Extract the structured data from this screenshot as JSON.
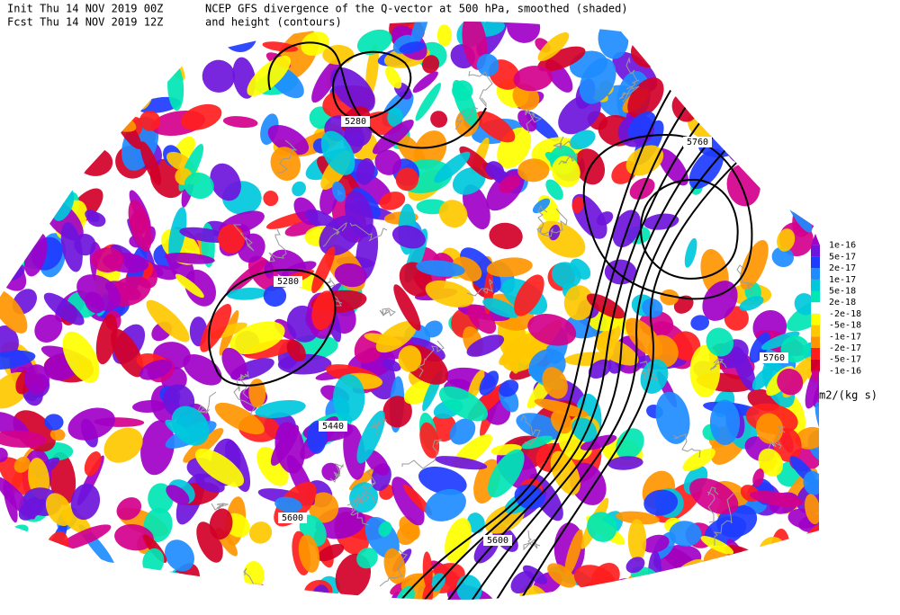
{
  "header": {
    "init": "Init  Thu 14 NOV 2019 00Z",
    "fcst": "Fcst Thu 14 NOV 2019 12Z",
    "title": "NCEP GFS divergence of the Q-vector at 500 hPa, smoothed (shaded)",
    "subtitle": "and height (contours)"
  },
  "contour_labels": [
    5280,
    5280,
    5440,
    5600,
    5600,
    5760,
    5760
  ],
  "colorbar": {
    "labels": [
      "1e-16",
      "5e-17",
      "2e-17",
      "1e-17",
      "5e-18",
      "2e-18",
      "-2e-18",
      "-5e-18",
      "-1e-17",
      "-2e-17",
      "-5e-17",
      "-1e-16"
    ],
    "colors": [
      "#a000c8",
      "#6e14dc",
      "#1e3cff",
      "#1e8cff",
      "#00c8dc",
      "#00e6b4",
      "#ffffff",
      "#ffff00",
      "#ffc800",
      "#ff9600",
      "#ff1e1e",
      "#d20028",
      "#d2008c"
    ],
    "unit": "m2/(kg s)"
  }
}
